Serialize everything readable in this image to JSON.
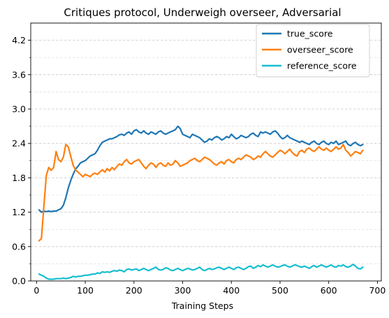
{
  "chart_data": {
    "type": "line",
    "title": "Critiques protocol, Underweigh overseer, Adversarial",
    "xlabel": "Training Steps",
    "ylabel": "",
    "xlim": [
      -12,
      708
    ],
    "ylim": [
      0.0,
      4.5
    ],
    "xticks": [
      0,
      100,
      200,
      300,
      400,
      500,
      600,
      700
    ],
    "yticks": [
      0.0,
      0.6,
      1.2,
      1.8,
      2.4,
      3.0,
      3.6,
      4.2
    ],
    "ytick_labels": [
      "0.0",
      "0.6",
      "1.2",
      "1.8",
      "2.4",
      "3.0",
      "3.6",
      "4.2"
    ],
    "grid": "horizontal dashed, major and minor",
    "legend_position": "upper-right",
    "x": [
      5,
      10,
      15,
      20,
      25,
      30,
      35,
      40,
      45,
      50,
      55,
      60,
      65,
      70,
      75,
      80,
      85,
      90,
      95,
      100,
      105,
      110,
      115,
      120,
      125,
      130,
      135,
      140,
      145,
      150,
      155,
      160,
      165,
      170,
      175,
      180,
      185,
      190,
      195,
      200,
      205,
      210,
      215,
      220,
      225,
      230,
      235,
      240,
      245,
      250,
      255,
      260,
      265,
      270,
      275,
      280,
      285,
      290,
      295,
      300,
      305,
      310,
      315,
      320,
      325,
      330,
      335,
      340,
      345,
      350,
      355,
      360,
      365,
      370,
      375,
      380,
      385,
      390,
      395,
      400,
      405,
      410,
      415,
      420,
      425,
      430,
      435,
      440,
      445,
      450,
      455,
      460,
      465,
      470,
      475,
      480,
      485,
      490,
      495,
      500,
      505,
      510,
      515,
      520,
      525,
      530,
      535,
      540,
      545,
      550,
      555,
      560,
      565,
      570,
      575,
      580,
      585,
      590,
      595,
      600,
      605,
      610,
      615,
      620,
      625,
      630,
      635,
      640,
      645,
      650,
      655,
      660,
      665,
      670
    ],
    "series": [
      {
        "name": "true_score",
        "color": "#1f77b4",
        "values": [
          1.24,
          1.2,
          1.22,
          1.21,
          1.22,
          1.21,
          1.22,
          1.22,
          1.24,
          1.26,
          1.32,
          1.45,
          1.62,
          1.75,
          1.86,
          1.95,
          2.0,
          2.06,
          2.08,
          2.1,
          2.14,
          2.18,
          2.2,
          2.22,
          2.28,
          2.36,
          2.42,
          2.44,
          2.46,
          2.48,
          2.48,
          2.5,
          2.52,
          2.55,
          2.56,
          2.54,
          2.58,
          2.6,
          2.56,
          2.62,
          2.64,
          2.6,
          2.58,
          2.62,
          2.58,
          2.56,
          2.6,
          2.58,
          2.56,
          2.6,
          2.62,
          2.58,
          2.56,
          2.58,
          2.6,
          2.62,
          2.64,
          2.7,
          2.66,
          2.56,
          2.54,
          2.52,
          2.5,
          2.56,
          2.54,
          2.52,
          2.5,
          2.46,
          2.42,
          2.44,
          2.48,
          2.46,
          2.5,
          2.52,
          2.5,
          2.46,
          2.48,
          2.52,
          2.5,
          2.56,
          2.52,
          2.48,
          2.5,
          2.54,
          2.52,
          2.5,
          2.52,
          2.56,
          2.58,
          2.54,
          2.52,
          2.6,
          2.58,
          2.6,
          2.58,
          2.56,
          2.6,
          2.62,
          2.58,
          2.52,
          2.48,
          2.5,
          2.54,
          2.5,
          2.48,
          2.46,
          2.44,
          2.42,
          2.44,
          2.42,
          2.4,
          2.38,
          2.42,
          2.44,
          2.4,
          2.38,
          2.42,
          2.44,
          2.4,
          2.38,
          2.42,
          2.4,
          2.44,
          2.38,
          2.4,
          2.42,
          2.44,
          2.38,
          2.36,
          2.4,
          2.42,
          2.38,
          2.36,
          2.38
        ]
      },
      {
        "name": "overseer_score",
        "color": "#ff7f0e",
        "values": [
          0.7,
          0.74,
          1.3,
          1.84,
          1.98,
          1.93,
          1.98,
          2.26,
          2.12,
          2.08,
          2.16,
          2.38,
          2.34,
          2.18,
          2.02,
          1.94,
          1.9,
          1.86,
          1.82,
          1.86,
          1.84,
          1.82,
          1.86,
          1.88,
          1.86,
          1.9,
          1.94,
          1.9,
          1.96,
          1.92,
          1.98,
          1.94,
          2.0,
          2.04,
          2.02,
          2.08,
          2.12,
          2.06,
          2.04,
          2.08,
          2.1,
          2.12,
          2.06,
          2.0,
          1.96,
          2.02,
          2.06,
          2.04,
          1.98,
          2.04,
          2.06,
          2.02,
          2.0,
          2.06,
          2.02,
          2.04,
          2.1,
          2.06,
          2.0,
          2.02,
          2.04,
          2.06,
          2.1,
          2.12,
          2.14,
          2.1,
          2.08,
          2.12,
          2.16,
          2.14,
          2.12,
          2.08,
          2.04,
          2.02,
          2.06,
          2.08,
          2.04,
          2.1,
          2.12,
          2.08,
          2.06,
          2.12,
          2.14,
          2.12,
          2.16,
          2.2,
          2.18,
          2.16,
          2.12,
          2.14,
          2.18,
          2.16,
          2.22,
          2.26,
          2.22,
          2.18,
          2.16,
          2.2,
          2.24,
          2.28,
          2.26,
          2.22,
          2.26,
          2.3,
          2.24,
          2.2,
          2.18,
          2.26,
          2.28,
          2.24,
          2.3,
          2.32,
          2.28,
          2.26,
          2.3,
          2.34,
          2.3,
          2.28,
          2.32,
          2.28,
          2.26,
          2.3,
          2.34,
          2.3,
          2.32,
          2.38,
          2.28,
          2.24,
          2.18,
          2.22,
          2.26,
          2.24,
          2.22,
          2.28
        ]
      },
      {
        "name": "reference_score",
        "color": "#17becf",
        "values": [
          0.12,
          0.1,
          0.08,
          0.05,
          0.03,
          0.03,
          0.03,
          0.04,
          0.04,
          0.04,
          0.05,
          0.04,
          0.05,
          0.06,
          0.08,
          0.07,
          0.08,
          0.08,
          0.09,
          0.1,
          0.1,
          0.11,
          0.12,
          0.12,
          0.14,
          0.13,
          0.16,
          0.15,
          0.16,
          0.15,
          0.17,
          0.18,
          0.17,
          0.19,
          0.18,
          0.16,
          0.2,
          0.21,
          0.19,
          0.2,
          0.21,
          0.18,
          0.2,
          0.22,
          0.2,
          0.18,
          0.2,
          0.22,
          0.24,
          0.2,
          0.19,
          0.2,
          0.23,
          0.22,
          0.19,
          0.18,
          0.2,
          0.22,
          0.2,
          0.18,
          0.2,
          0.22,
          0.21,
          0.19,
          0.2,
          0.22,
          0.24,
          0.2,
          0.18,
          0.2,
          0.22,
          0.2,
          0.21,
          0.23,
          0.24,
          0.22,
          0.2,
          0.22,
          0.24,
          0.22,
          0.2,
          0.23,
          0.24,
          0.22,
          0.2,
          0.22,
          0.25,
          0.26,
          0.22,
          0.24,
          0.27,
          0.25,
          0.28,
          0.26,
          0.24,
          0.26,
          0.28,
          0.26,
          0.24,
          0.25,
          0.27,
          0.28,
          0.26,
          0.24,
          0.26,
          0.28,
          0.27,
          0.25,
          0.24,
          0.26,
          0.24,
          0.22,
          0.25,
          0.27,
          0.24,
          0.26,
          0.28,
          0.26,
          0.24,
          0.26,
          0.28,
          0.25,
          0.24,
          0.27,
          0.26,
          0.28,
          0.25,
          0.24,
          0.26,
          0.29,
          0.26,
          0.22,
          0.21,
          0.24
        ]
      }
    ]
  }
}
